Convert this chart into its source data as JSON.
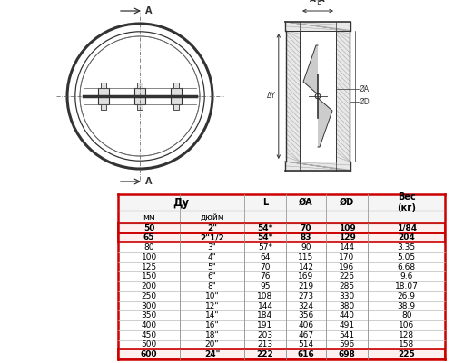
{
  "rows": [
    [
      "50",
      "2\"",
      "54*",
      "70",
      "109",
      "1/84"
    ],
    [
      "65",
      "2\"1/2",
      "54*",
      "83",
      "129",
      "204"
    ],
    [
      "80",
      "3\"",
      "57*",
      "90",
      "144",
      "3.35"
    ],
    [
      "100",
      "4\"",
      "64",
      "115",
      "170",
      "5.05"
    ],
    [
      "125",
      "5\"",
      "70",
      "142",
      "196",
      "6.68"
    ],
    [
      "150",
      "6\"",
      "76",
      "169",
      "226",
      "9.6"
    ],
    [
      "200",
      "8\"",
      "95",
      "219",
      "285",
      "18.07"
    ],
    [
      "250",
      "10\"",
      "108",
      "273",
      "330",
      "26.9"
    ],
    [
      "300",
      "12\"",
      "144",
      "324",
      "380",
      "38.9"
    ],
    [
      "350",
      "14\"",
      "184",
      "356",
      "440",
      "80"
    ],
    [
      "400",
      "16\"",
      "191",
      "406",
      "491",
      "106"
    ],
    [
      "450",
      "18\"",
      "203",
      "467",
      "541",
      "128"
    ],
    [
      "500",
      "20\"",
      "213",
      "514",
      "596",
      "158"
    ],
    [
      "600",
      "24\"",
      "222",
      "616",
      "698",
      "225"
    ]
  ],
  "highlighted_rows": [
    0,
    1,
    13
  ],
  "bg_color": "#ffffff",
  "table_border_color": "#cc0000",
  "grid_color": "#999999",
  "lc": "#333333"
}
